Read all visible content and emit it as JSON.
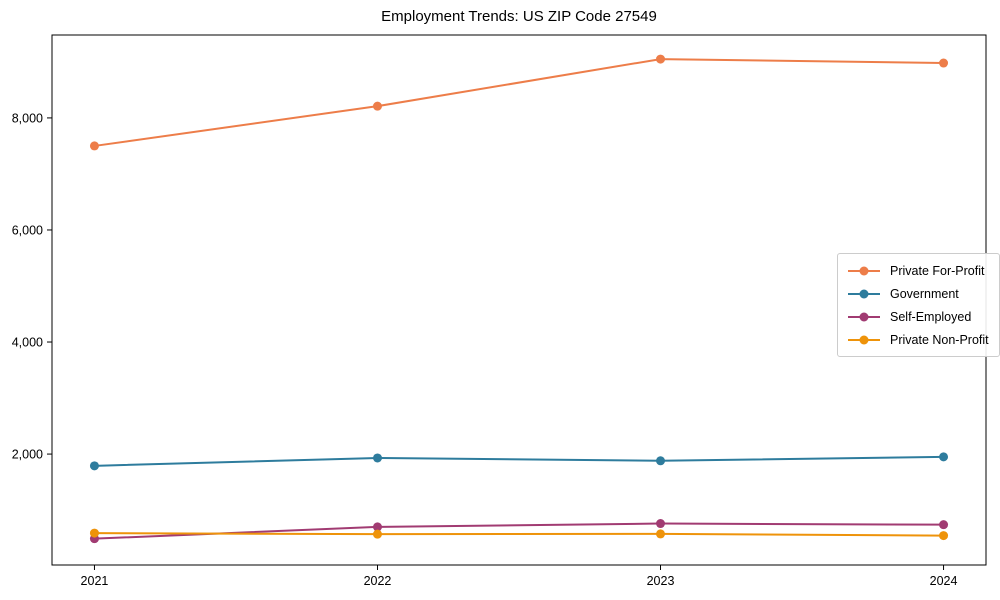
{
  "chart_data": {
    "type": "line",
    "title": "Employment Trends: US ZIP Code 27549",
    "x": [
      2021,
      2022,
      2023,
      2024
    ],
    "xtick_labels": [
      "2021",
      "2022",
      "2023",
      "2024"
    ],
    "series": [
      {
        "name": "Private For-Profit",
        "color": "#ED7D49",
        "values": [
          7500,
          8210,
          9050,
          8980
        ]
      },
      {
        "name": "Government",
        "color": "#2E7C9D",
        "values": [
          1790,
          1930,
          1880,
          1950
        ]
      },
      {
        "name": "Self-Employed",
        "color": "#A13B72",
        "values": [
          490,
          700,
          760,
          740
        ]
      },
      {
        "name": "Private Non-Profit",
        "color": "#EE930A",
        "values": [
          590,
          570,
          575,
          545
        ]
      }
    ],
    "xlabel": "",
    "ylabel": "",
    "xlim": [
      2020.85,
      2024.15
    ],
    "ylim": [
      20,
      9480
    ],
    "yticks": [
      2000,
      4000,
      6000,
      8000
    ],
    "grid": false,
    "legend_position": "center-right",
    "marker": "circle",
    "background_color": "#ffffff",
    "axis_color": "#000000"
  }
}
